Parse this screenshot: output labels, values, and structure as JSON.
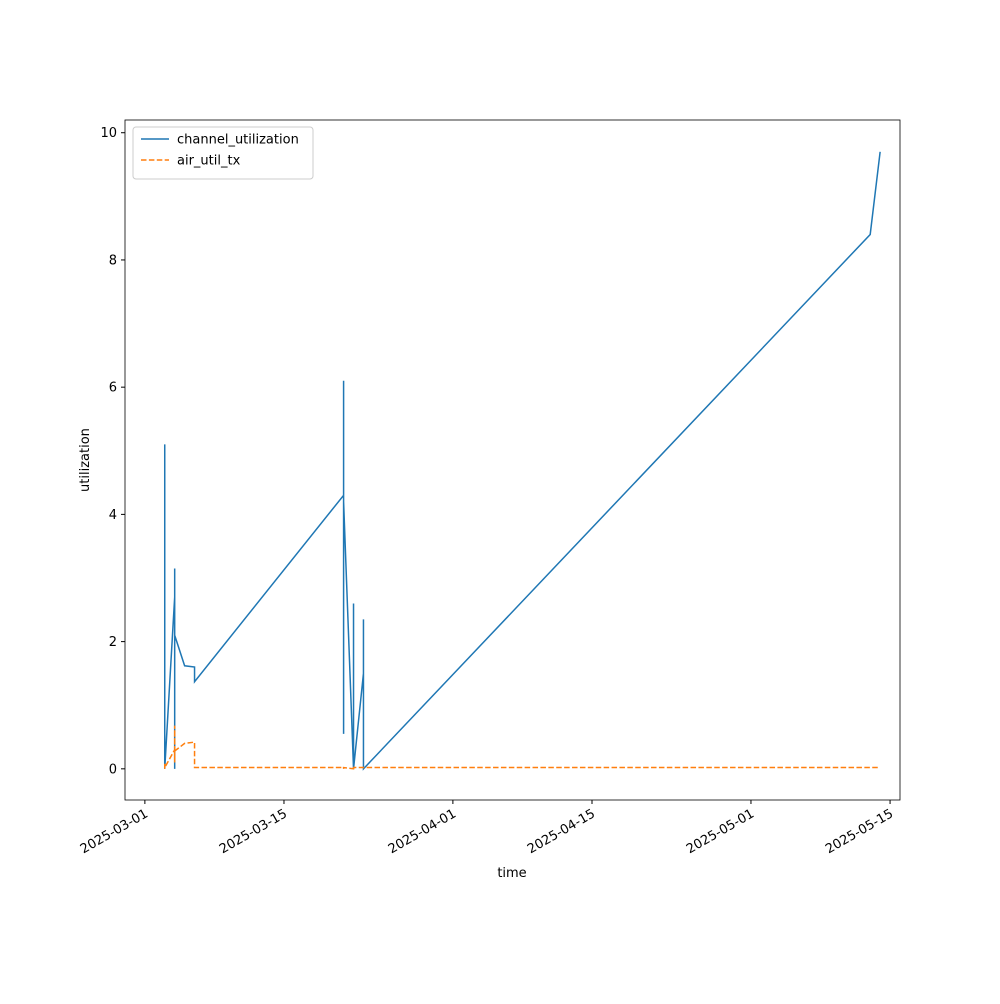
{
  "chart_data": {
    "type": "line",
    "xlabel": "time",
    "ylabel": "utilization",
    "x": [
      "2025-03-03",
      "2025-03-03",
      "2025-03-03",
      "2025-03-03",
      "2025-03-03",
      "2025-03-03",
      "2025-03-03",
      "2025-03-04",
      "2025-03-04",
      "2025-03-04",
      "2025-03-04",
      "2025-03-04",
      "2025-03-04",
      "2025-03-04",
      "2025-03-04",
      "2025-03-04",
      "2025-03-05",
      "2025-03-06",
      "2025-03-06",
      "2025-03-21",
      "2025-03-21",
      "2025-03-21",
      "2025-03-21",
      "2025-03-21",
      "2025-03-21",
      "2025-03-21",
      "2025-03-21",
      "2025-03-21",
      "2025-03-21",
      "2025-03-21",
      "2025-03-22",
      "2025-03-22",
      "2025-03-22",
      "2025-03-22",
      "2025-03-22",
      "2025-03-22",
      "2025-03-22",
      "2025-03-22",
      "2025-03-22",
      "2025-03-22",
      "2025-03-23",
      "2025-03-23",
      "2025-03-23",
      "2025-03-23",
      "2025-05-13",
      "2025-05-14"
    ],
    "series": [
      {
        "name": "channel_utilization",
        "color": "#1f77b4",
        "linestyle": "solid",
        "values": [
          3.4,
          0,
          2.3,
          5.1,
          1.3,
          1.5,
          0,
          2.7,
          0,
          3.15,
          1.4,
          2.6,
          0,
          2.4,
          1.4,
          2.1,
          1.62,
          1.6,
          1.37,
          4.3,
          4.8,
          2.6,
          3.0,
          0.55,
          6.1,
          0.6,
          2.5,
          4.7,
          1.7,
          4.2,
          0,
          1.15,
          0,
          2.6,
          0.55,
          2.25,
          1.05,
          0,
          0.55,
          0,
          1.5,
          0,
          2.35,
          0,
          8.4,
          9.7
        ]
      },
      {
        "name": "air_util_tx",
        "color": "#ff7f0e",
        "linestyle": "dashed",
        "values": [
          0.02,
          0.08,
          0.04,
          0.0,
          0.05,
          0.03,
          0.02,
          0.3,
          0.68,
          0.2,
          0.1,
          0.3,
          0.2,
          0.28,
          0.1,
          0.28,
          0.4,
          0.42,
          0.02,
          0.02,
          0.0,
          0.02,
          0.0,
          0.02,
          0.0,
          0.02,
          0.02,
          0.0,
          0.02,
          0.02,
          0.0,
          0.02,
          0.0,
          0.02,
          0.02,
          0.02,
          0.02,
          0.0,
          0.02,
          0.02,
          0.02,
          0.02,
          0.02,
          0.02,
          0.02,
          0.02
        ]
      }
    ],
    "xlim": [
      "2025-02-27",
      "2025-05-16"
    ],
    "xticks": [
      "2025-03-01",
      "2025-03-15",
      "2025-04-01",
      "2025-04-15",
      "2025-05-01",
      "2025-05-15"
    ],
    "ylim": [
      -0.49,
      10.2
    ],
    "yticks": [
      0,
      2,
      4,
      6,
      8,
      10
    ],
    "legend": "upper left"
  }
}
